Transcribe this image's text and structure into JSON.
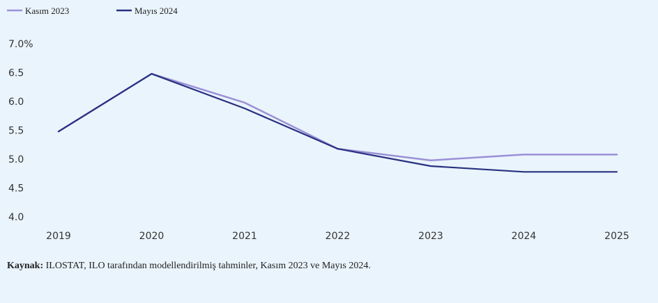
{
  "chart_data": {
    "type": "line",
    "categories": [
      "2019",
      "2020",
      "2021",
      "2022",
      "2023",
      "2024",
      "2025"
    ],
    "series": [
      {
        "name": "Kasım 2023",
        "color": "#9a90d6",
        "values": [
          5.48,
          6.48,
          5.98,
          5.18,
          4.98,
          5.08,
          5.08
        ]
      },
      {
        "name": "Mayıs 2024",
        "color": "#283080",
        "values": [
          5.48,
          6.48,
          5.88,
          5.18,
          4.88,
          4.78,
          4.78
        ]
      }
    ],
    "ylim": [
      4.0,
      7.0
    ],
    "yticks": [
      "4.0",
      "4.5",
      "5.0",
      "5.5",
      "6.0",
      "6.5",
      "7.0%"
    ],
    "ytick_values": [
      4.0,
      4.5,
      5.0,
      5.5,
      6.0,
      6.5,
      7.0
    ],
    "grid": false,
    "legend_position": "top-left"
  },
  "source": {
    "label": "Kaynak:",
    "text": "ILOSTAT, ILO tarafından modellendirilmiş tahminler, Kasım 2023 ve Mayıs 2024."
  }
}
